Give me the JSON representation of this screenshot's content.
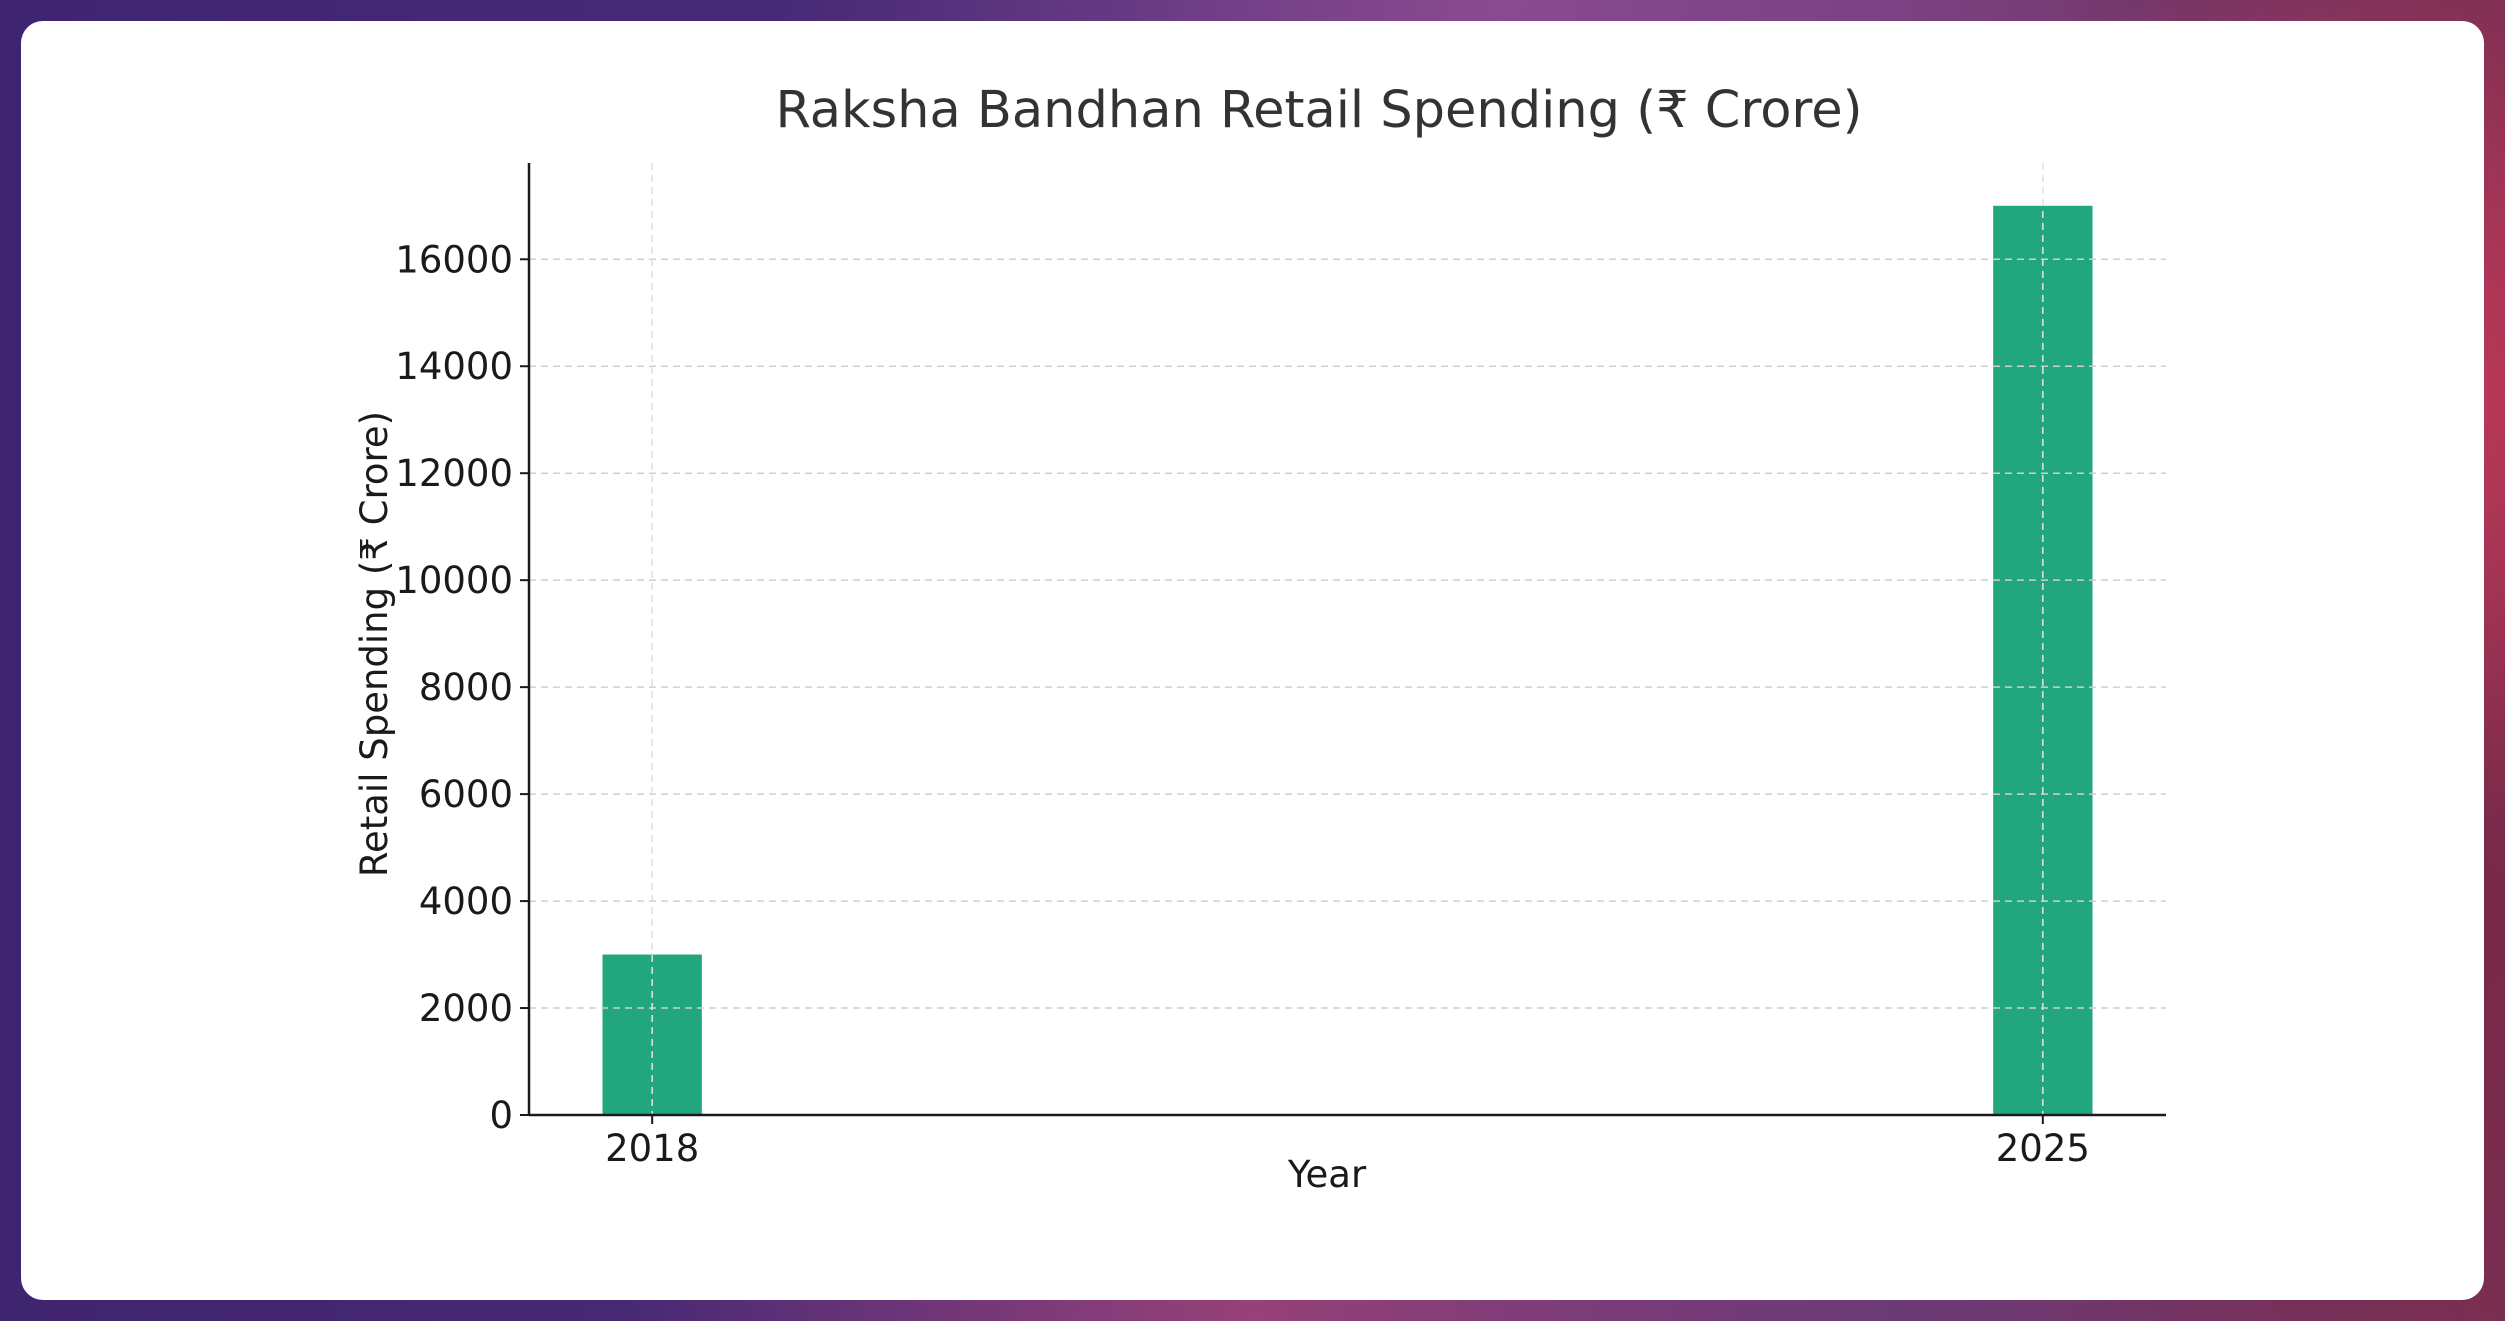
{
  "chart_data": {
    "type": "bar",
    "title": "Raksha Bandhan Retail Spending (₹ Crore)",
    "xlabel": "Year",
    "ylabel": "Retail Spending (₹ Crore)",
    "categories": [
      "2018",
      "2025"
    ],
    "x": [
      2018,
      2025
    ],
    "values": [
      3000,
      17000
    ],
    "ylim": [
      0,
      17800
    ],
    "yticks": [
      0,
      2000,
      4000,
      6000,
      8000,
      10000,
      12000,
      14000,
      16000
    ],
    "xlim": [
      2017.38,
      2025.62
    ],
    "bar_width_years": 0.5,
    "grid": true,
    "legend": "none",
    "colors": {
      "bar": "#21a67e",
      "axis": "#1a1a1a",
      "grid": "#cfcfcf"
    }
  }
}
